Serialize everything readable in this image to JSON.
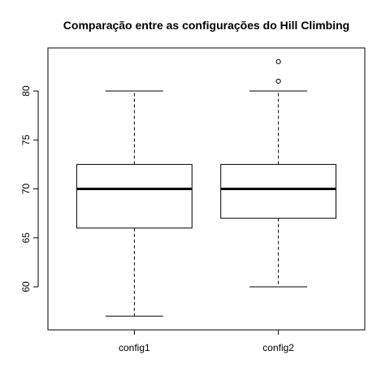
{
  "chart_data": {
    "type": "boxplot",
    "title": "Comparação entre as configurações do Hill Climbing",
    "xlabel": "",
    "ylabel": "",
    "ylim": [
      55.6,
      84.4
    ],
    "yticks": [
      60,
      65,
      70,
      75,
      80
    ],
    "grid": false,
    "categories": [
      "config1",
      "config2"
    ],
    "boxes": [
      {
        "category": "config1",
        "whisker_low": 57,
        "q1": 66,
        "median": 70,
        "q3": 72.5,
        "whisker_high": 80,
        "outliers": []
      },
      {
        "category": "config2",
        "whisker_low": 60,
        "q1": 67,
        "median": 70,
        "q3": 72.5,
        "whisker_high": 80,
        "outliers": [
          81,
          83
        ]
      }
    ]
  }
}
